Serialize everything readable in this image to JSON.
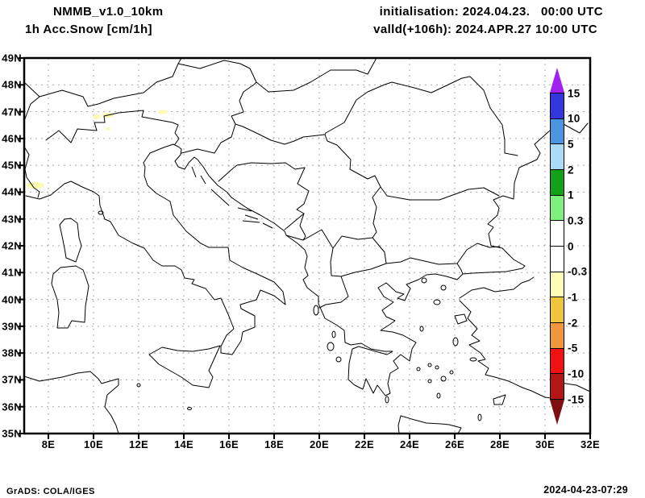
{
  "header": {
    "model": "NMMB_v1.0_10km",
    "variable": "1h Acc.Snow [cm/1h]",
    "init_line": "initialisation: 2024.04.23.   00:00 UTC",
    "valid_line": "valld(+106h): 2024.APR.27 10:00 UTC"
  },
  "map": {
    "lat_labels": [
      "49N",
      "48N",
      "47N",
      "46N",
      "45N",
      "44N",
      "43N",
      "42N",
      "41N",
      "40N",
      "39N",
      "38N",
      "37N",
      "36N",
      "35N"
    ],
    "lon_labels": [
      "8E",
      "10E",
      "12E",
      "14E",
      "16E",
      "18E",
      "20E",
      "22E",
      "24E",
      "26E",
      "28E",
      "30E",
      "32E"
    ]
  },
  "colorbar": {
    "labels": [
      "15",
      "10",
      "5",
      "2",
      "1",
      "0.3",
      "0",
      "-0.3",
      "-1",
      "-2",
      "-5",
      "-10",
      "-15"
    ],
    "segment_colors": [
      "#3335dd",
      "#4a94e0",
      "#aadcf8",
      "#12a118",
      "#7df07d",
      "#ffffff",
      "#ffffff",
      "#fdfdb6",
      "#efc53e",
      "#f0963c",
      "#f01212",
      "#b41616"
    ],
    "top_arrow_color": "#a121f0",
    "bottom_arrow_color": "#7d0f0f",
    "grid_color": "#a8a8a8"
  },
  "footer": {
    "credit": "GrADS: COLA/IGES",
    "timestamp": "2024-04-23-07:29"
  }
}
